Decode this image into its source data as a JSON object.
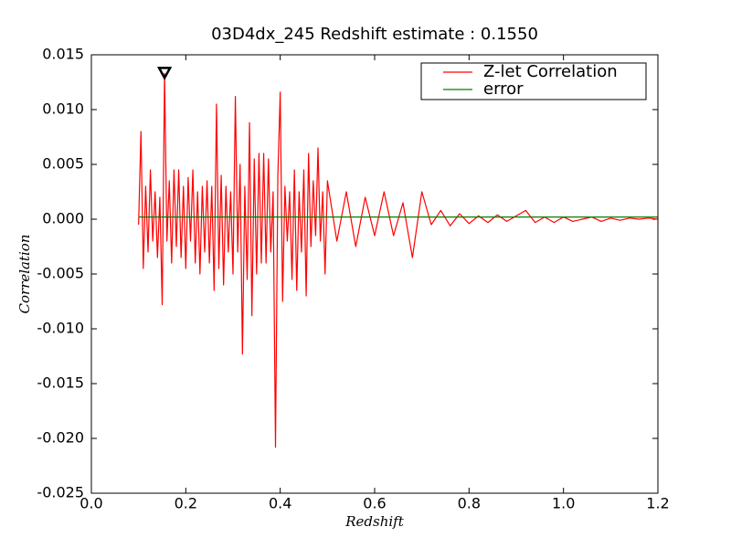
{
  "chart_data": {
    "type": "line",
    "title": "03D4dx_245 Redshift estimate : 0.1550",
    "xlabel": "Redshift",
    "ylabel": "Correlation",
    "xlim": [
      0,
      1.2
    ],
    "ylim": [
      -0.025,
      0.015
    ],
    "xticks": [
      {
        "value": 0,
        "label": "0.0"
      },
      0.2,
      0.4,
      0.6,
      0.8,
      {
        "value": 1,
        "label": "1.0"
      },
      1.2
    ],
    "yticks": [
      0.015,
      {
        "value": 0.01,
        "label": "0.010"
      },
      0.005,
      {
        "value": 0,
        "label": "0.000"
      },
      -0.005,
      {
        "value": -0.01,
        "label": "-0.010"
      },
      -0.015,
      {
        "value": -0.02,
        "label": "-0.020"
      },
      -0.025
    ],
    "grid": false,
    "legend": "upper right",
    "markers": [
      {
        "x": 0.155,
        "y": 0.0133,
        "color": "#000000"
      }
    ],
    "series": [
      {
        "name": "Z-let Correlation",
        "color": "#ff0000",
        "x": [
          0.1,
          0.105,
          0.11,
          0.115,
          0.12,
          0.125,
          0.13,
          0.135,
          0.14,
          0.145,
          0.15,
          0.155,
          0.16,
          0.165,
          0.17,
          0.175,
          0.18,
          0.185,
          0.19,
          0.195,
          0.2,
          0.205,
          0.21,
          0.215,
          0.22,
          0.225,
          0.23,
          0.235,
          0.24,
          0.245,
          0.25,
          0.255,
          0.26,
          0.265,
          0.27,
          0.275,
          0.28,
          0.285,
          0.29,
          0.295,
          0.3,
          0.305,
          0.31,
          0.315,
          0.32,
          0.325,
          0.33,
          0.335,
          0.34,
          0.345,
          0.35,
          0.355,
          0.36,
          0.365,
          0.37,
          0.375,
          0.38,
          0.385,
          0.39,
          0.395,
          0.4,
          0.405,
          0.41,
          0.415,
          0.42,
          0.425,
          0.43,
          0.435,
          0.44,
          0.445,
          0.45,
          0.455,
          0.46,
          0.465,
          0.47,
          0.475,
          0.48,
          0.485,
          0.49,
          0.495,
          0.5,
          0.52,
          0.54,
          0.56,
          0.58,
          0.6,
          0.62,
          0.64,
          0.66,
          0.68,
          0.7,
          0.72,
          0.74,
          0.76,
          0.78,
          0.8,
          0.82,
          0.84,
          0.86,
          0.88,
          0.9,
          0.92,
          0.94,
          0.96,
          0.98,
          1.0,
          1.02,
          1.04,
          1.06,
          1.08,
          1.1,
          1.12,
          1.14,
          1.16,
          1.18,
          1.2
        ],
        "values": [
          -0.0005,
          0.008,
          -0.0045,
          0.003,
          -0.003,
          0.0045,
          -0.002,
          0.0025,
          -0.0035,
          0.002,
          -0.0078,
          0.0133,
          -0.002,
          0.0035,
          -0.004,
          0.0045,
          -0.0025,
          0.0045,
          -0.0035,
          0.003,
          -0.0045,
          0.0038,
          -0.002,
          0.0045,
          -0.004,
          0.0025,
          -0.005,
          0.003,
          -0.003,
          0.0035,
          -0.004,
          0.003,
          -0.0065,
          0.0105,
          -0.0045,
          0.004,
          -0.006,
          0.003,
          -0.003,
          0.0025,
          -0.005,
          0.0112,
          -0.003,
          0.005,
          -0.0123,
          0.003,
          -0.0055,
          0.0088,
          -0.0088,
          0.0055,
          -0.005,
          0.006,
          -0.004,
          0.006,
          -0.004,
          0.0055,
          -0.003,
          0.0025,
          -0.0208,
          0.004,
          0.0116,
          -0.0075,
          0.003,
          -0.002,
          0.0025,
          -0.0055,
          0.0045,
          -0.0065,
          0.0025,
          -0.003,
          0.0045,
          -0.007,
          0.006,
          -0.0025,
          0.0035,
          -0.0015,
          0.0065,
          -0.002,
          0.0025,
          -0.005,
          0.0035,
          -0.002,
          0.0025,
          -0.0025,
          0.002,
          -0.0015,
          0.0025,
          -0.0015,
          0.0015,
          -0.0035,
          0.0025,
          -0.0005,
          0.0008,
          -0.0006,
          0.0005,
          -0.0004,
          0.0003,
          -0.0003,
          0.0004,
          -0.0002,
          0.0003,
          0.0008,
          -0.0003,
          0.0002,
          -0.0003,
          0.0002,
          -0.0002,
          0,
          0.0002,
          -0.0002,
          0.0001,
          -0.0001,
          0.0001,
          0,
          0.0001,
          0
        ]
      },
      {
        "name": "error",
        "color": "#008000",
        "x": [
          0.1,
          1.2
        ],
        "values": [
          0.0002,
          0.0002
        ]
      }
    ]
  }
}
